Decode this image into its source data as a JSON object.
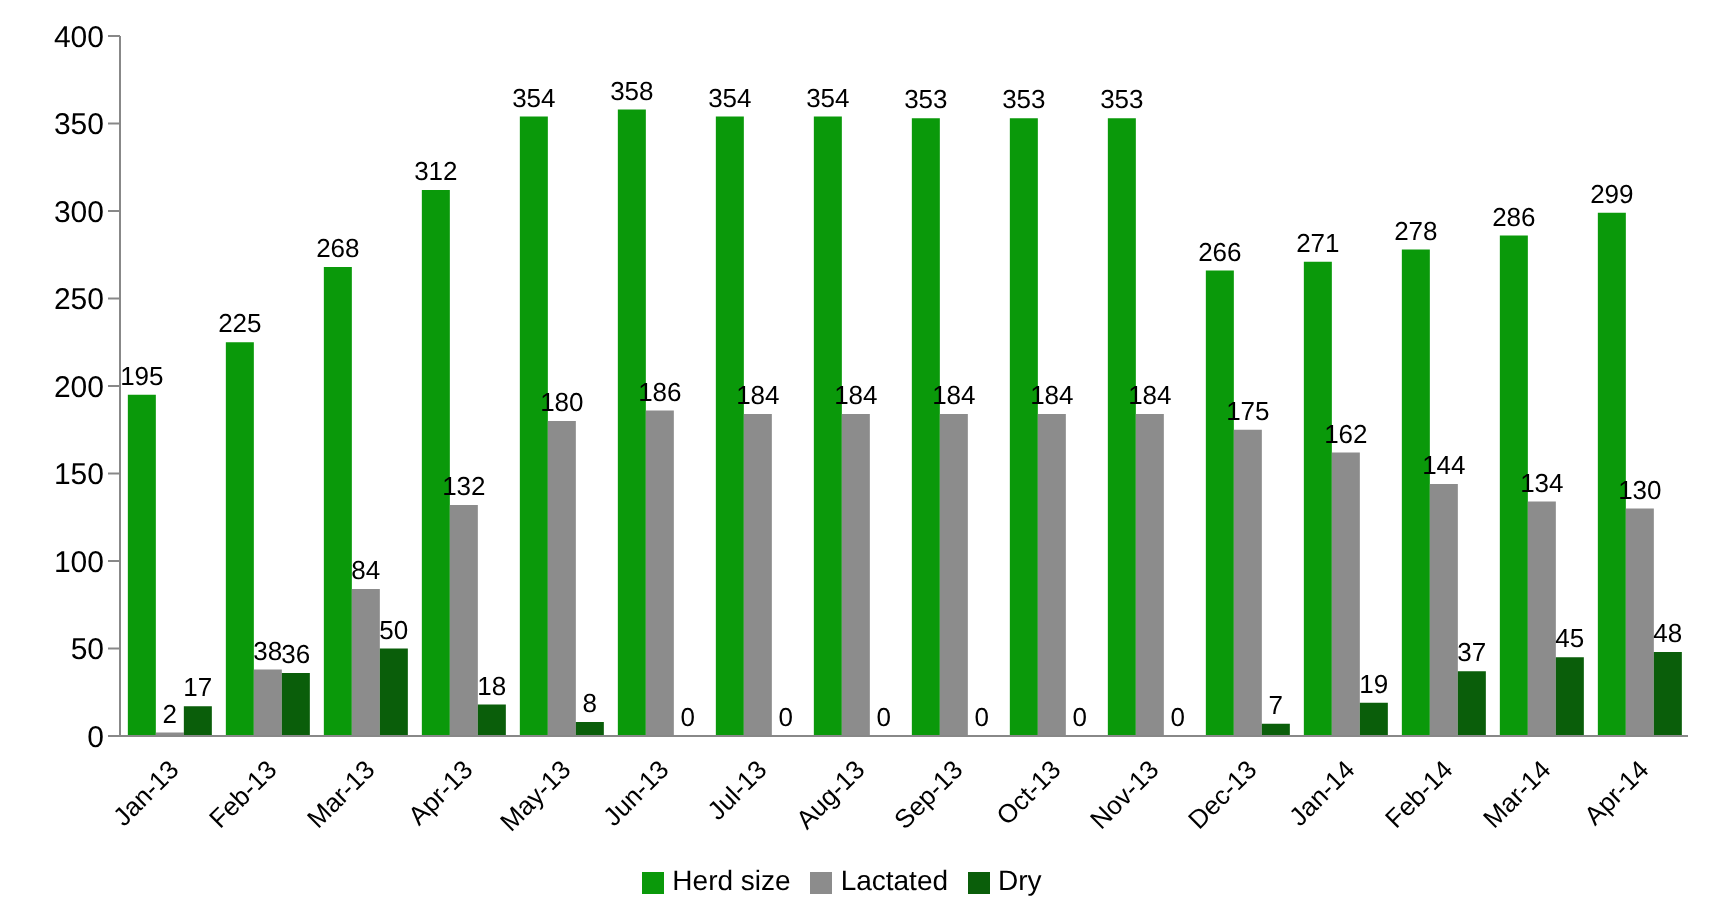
{
  "chart_data": {
    "type": "bar",
    "categories": [
      "Jan-13",
      "Feb-13",
      "Mar-13",
      "Apr-13",
      "May-13",
      "Jun-13",
      "Jul-13",
      "Aug-13",
      "Sep-13",
      "Oct-13",
      "Nov-13",
      "Dec-13",
      "Jan-14",
      "Feb-14",
      "Mar-14",
      "Apr-14"
    ],
    "series": [
      {
        "name": "Herd size",
        "color": "#0a990a",
        "values": [
          195,
          225,
          268,
          312,
          354,
          358,
          354,
          354,
          353,
          353,
          353,
          266,
          271,
          278,
          286,
          299
        ]
      },
      {
        "name": "Lactated",
        "color": "#8c8c8c",
        "values": [
          2,
          38,
          84,
          132,
          180,
          186,
          184,
          184,
          184,
          184,
          184,
          175,
          162,
          144,
          134,
          130
        ]
      },
      {
        "name": "Dry",
        "color": "#0a5e0a",
        "values": [
          17,
          36,
          50,
          18,
          8,
          0,
          0,
          0,
          0,
          0,
          0,
          7,
          19,
          37,
          45,
          48
        ]
      }
    ],
    "ylim": [
      0,
      400
    ],
    "yticks": [
      0,
      50,
      100,
      150,
      200,
      250,
      300,
      350,
      400
    ],
    "grid": false,
    "legend": "bottom",
    "data_labels": true
  }
}
